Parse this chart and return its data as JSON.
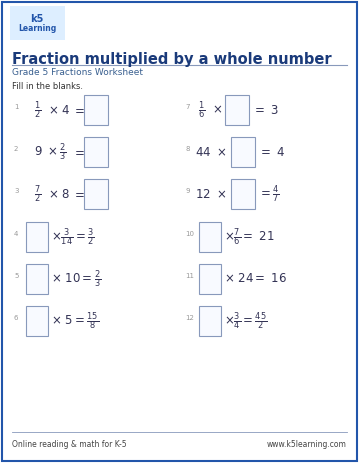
{
  "title": "Fraction multiplied by a whole number",
  "subtitle": "Grade 5 Fractions Worksheet",
  "instruction": "Fill in the blanks.",
  "title_color": "#1a3a7a",
  "subtitle_color": "#3a6090",
  "border_color": "#2255aa",
  "bg_color": "#ffffff",
  "footer_left": "Online reading & math for K-5",
  "footer_right": "www.k5learning.com",
  "text_color": "#333355",
  "num_color": "#999999",
  "box_edge_color": "#8899bb",
  "box_face_color": "#f8faff",
  "line_color": "#8899bb"
}
